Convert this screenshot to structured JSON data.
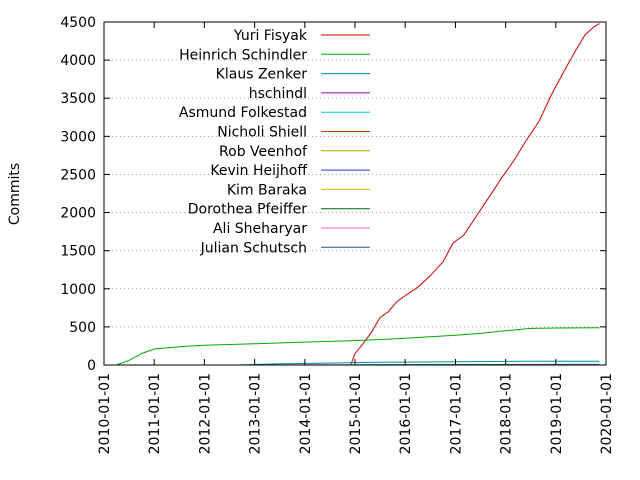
{
  "chart_data": {
    "type": "line",
    "title": "",
    "xlabel": "",
    "ylabel": "Commits",
    "xlim": [
      "2010-01-01",
      "2020-01-01"
    ],
    "ylim": [
      0,
      4500
    ],
    "yticks": [
      0,
      500,
      1000,
      1500,
      2000,
      2500,
      3000,
      3500,
      4000,
      4500
    ],
    "xticks": [
      "2010-01-01",
      "2011-01-01",
      "2012-01-01",
      "2013-01-01",
      "2014-01-01",
      "2015-01-01",
      "2016-01-01",
      "2017-01-01",
      "2018-01-01",
      "2019-01-01",
      "2020-01-01"
    ],
    "grid": true,
    "legend_position": "top-left",
    "series": [
      {
        "name": "Yuri Fisyak",
        "color": "#cc0000",
        "points": [
          [
            "2014-12-01",
            0
          ],
          [
            "2015-01-01",
            150
          ],
          [
            "2015-03-01",
            280
          ],
          [
            "2015-05-01",
            430
          ],
          [
            "2015-07-01",
            620
          ],
          [
            "2015-09-01",
            700
          ],
          [
            "2015-11-01",
            830
          ],
          [
            "2016-01-01",
            910
          ],
          [
            "2016-04-01",
            1020
          ],
          [
            "2016-07-01",
            1170
          ],
          [
            "2016-10-01",
            1350
          ],
          [
            "2016-12-15",
            1600
          ],
          [
            "2017-03-01",
            1700
          ],
          [
            "2017-06-01",
            1950
          ],
          [
            "2017-09-01",
            2200
          ],
          [
            "2017-12-01",
            2450
          ],
          [
            "2018-03-01",
            2680
          ],
          [
            "2018-06-01",
            2950
          ],
          [
            "2018-09-01",
            3200
          ],
          [
            "2018-12-01",
            3550
          ],
          [
            "2019-03-01",
            3850
          ],
          [
            "2019-06-01",
            4150
          ],
          [
            "2019-08-01",
            4330
          ],
          [
            "2019-10-01",
            4430
          ],
          [
            "2019-11-15",
            4480
          ]
        ]
      },
      {
        "name": "Heinrich Schindler",
        "color": "#00aa00",
        "points": [
          [
            "2010-04-01",
            0
          ],
          [
            "2010-07-01",
            60
          ],
          [
            "2010-10-01",
            150
          ],
          [
            "2011-01-01",
            210
          ],
          [
            "2011-07-01",
            240
          ],
          [
            "2012-01-01",
            260
          ],
          [
            "2013-01-01",
            280
          ],
          [
            "2014-01-01",
            300
          ],
          [
            "2015-01-01",
            320
          ],
          [
            "2015-07-01",
            335
          ],
          [
            "2016-01-01",
            350
          ],
          [
            "2016-07-01",
            370
          ],
          [
            "2017-01-01",
            390
          ],
          [
            "2017-07-01",
            415
          ],
          [
            "2018-01-01",
            450
          ],
          [
            "2018-07-01",
            480
          ],
          [
            "2019-01-01",
            485
          ],
          [
            "2019-11-15",
            490
          ]
        ]
      },
      {
        "name": "Klaus Zenker",
        "color": "#0088aa",
        "points": [
          [
            "2012-09-01",
            0
          ],
          [
            "2013-06-01",
            15
          ],
          [
            "2014-06-01",
            25
          ],
          [
            "2015-06-01",
            35
          ],
          [
            "2016-06-01",
            40
          ],
          [
            "2017-06-01",
            45
          ],
          [
            "2018-06-01",
            48
          ],
          [
            "2019-11-15",
            50
          ]
        ]
      },
      {
        "name": "hschindl",
        "color": "#9900aa",
        "points": [
          [
            "2012-09-01",
            0
          ],
          [
            "2019-11-15",
            3
          ]
        ]
      },
      {
        "name": "Asmund Folkestad",
        "color": "#00cccc",
        "points": [
          [
            "2015-01-01",
            0
          ],
          [
            "2015-06-01",
            5
          ],
          [
            "2017-01-01",
            8
          ],
          [
            "2019-11-15",
            10
          ]
        ]
      },
      {
        "name": "Nicholi Shiell",
        "color": "#aa4400",
        "points": [
          [
            "2016-01-01",
            0
          ],
          [
            "2019-11-15",
            3
          ]
        ]
      },
      {
        "name": "Rob Veenhof",
        "color": "#aaaa00",
        "points": [
          [
            "2014-01-01",
            0
          ],
          [
            "2019-11-15",
            2
          ]
        ]
      },
      {
        "name": "Kevin Heijhoff",
        "color": "#3333cc",
        "points": [
          [
            "2017-01-01",
            0
          ],
          [
            "2019-11-15",
            2
          ]
        ]
      },
      {
        "name": "Kim Baraka",
        "color": "#ddbb00",
        "points": [
          [
            "2018-01-01",
            0
          ],
          [
            "2019-11-15",
            2
          ]
        ]
      },
      {
        "name": "Dorothea Pfeiffer",
        "color": "#006622",
        "points": [
          [
            "2015-01-01",
            0
          ],
          [
            "2019-11-15",
            4
          ]
        ]
      },
      {
        "name": "Ali Sheharyar",
        "color": "#ee66cc",
        "points": [
          [
            "2014-01-01",
            0
          ],
          [
            "2019-11-15",
            2
          ]
        ]
      },
      {
        "name": "Julian Schutsch",
        "color": "#225588",
        "points": [
          [
            "2013-01-01",
            0
          ],
          [
            "2019-11-15",
            2
          ]
        ]
      }
    ]
  }
}
